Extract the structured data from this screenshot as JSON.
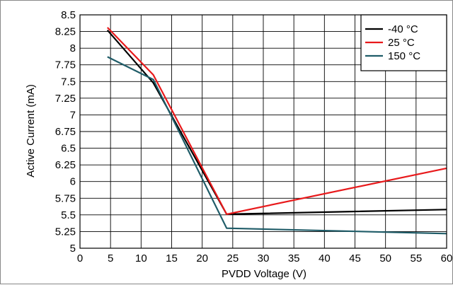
{
  "chart_data": {
    "type": "line",
    "title": "",
    "xlabel": "PVDD Voltage (V)",
    "ylabel": "Active Current (mA)",
    "xlim": [
      0,
      60
    ],
    "ylim": [
      5,
      8.5
    ],
    "x_ticks": [
      "0",
      "5",
      "10",
      "15",
      "20",
      "25",
      "30",
      "35",
      "40",
      "45",
      "50",
      "55",
      "60"
    ],
    "y_ticks": [
      "8.5",
      "8.25",
      "8",
      "7.75",
      "7.5",
      "7.25",
      "7",
      "6.75",
      "6.5",
      "6.25",
      "6",
      "5.75",
      "5.5",
      "5.25",
      "5"
    ],
    "grid": true,
    "legend_position": "top-right",
    "series": [
      {
        "name": "-40 °C",
        "color": "#000000",
        "x": [
          4.5,
          12,
          24,
          60
        ],
        "y": [
          8.27,
          7.48,
          5.51,
          5.58
        ]
      },
      {
        "name": "25 °C",
        "color": "#e8191b",
        "x": [
          4.5,
          12,
          24,
          60
        ],
        "y": [
          8.31,
          7.6,
          5.51,
          6.2
        ]
      },
      {
        "name": "150 °C",
        "color": "#1f5c68",
        "x": [
          4.5,
          12,
          24,
          60
        ],
        "y": [
          7.87,
          7.53,
          5.3,
          5.22
        ]
      }
    ]
  }
}
